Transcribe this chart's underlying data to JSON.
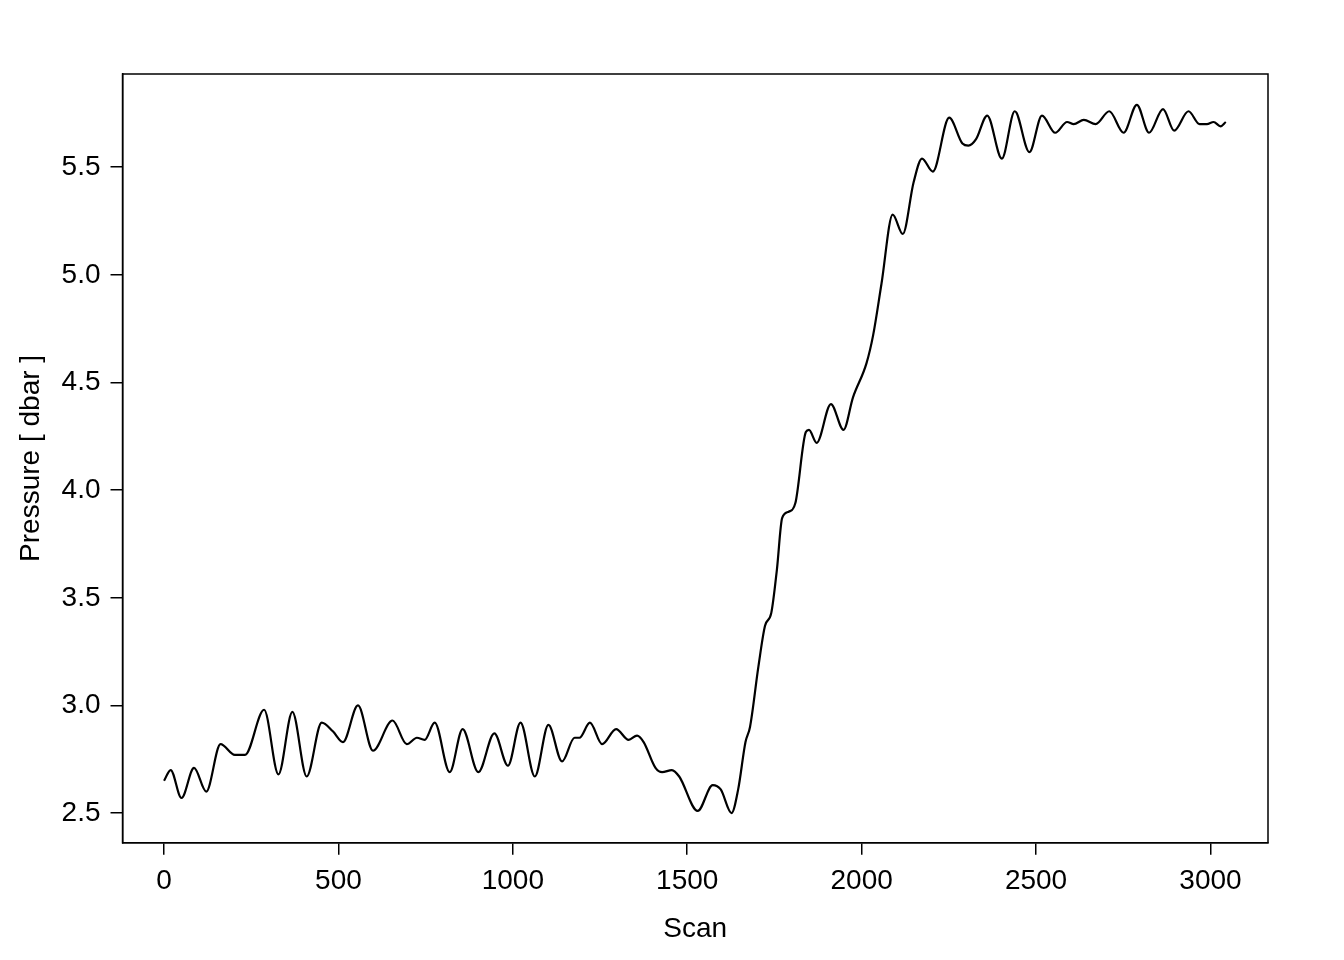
{
  "chart_data": {
    "type": "line",
    "xlabel": "Scan",
    "ylabel": "Pressure [ dbar ]",
    "xlim": [
      -119,
      3165
    ],
    "ylim": [
      2.362,
      5.933
    ],
    "xticks": [
      0,
      500,
      1000,
      1500,
      2000,
      2500,
      3000
    ],
    "yticks": [
      2.5,
      {
        "value": 3,
        "label": "3.0"
      },
      3.5,
      {
        "value": 4,
        "label": "4.0"
      },
      4.5,
      {
        "value": 5,
        "label": "5.0"
      },
      5.5
    ],
    "grid": false,
    "legend": false,
    "marker": "none",
    "line_style": "solid",
    "series": [
      {
        "color": "#000000",
        "x": [
          0,
          19,
          50,
          86,
          121,
          162,
          203,
          232,
          287,
          328,
          368,
          409,
          452,
          484,
          513,
          556,
          599,
          655,
          696,
          725,
          747,
          776,
          819,
          856,
          901,
          947,
          986,
          1022,
          1063,
          1102,
          1141,
          1177,
          1191,
          1221,
          1256,
          1296,
          1332,
          1356,
          1375,
          1409,
          1428,
          1456,
          1477,
          1530,
          1573,
          1596,
          1627,
          1646,
          1667,
          1680,
          1704,
          1723,
          1741,
          1757,
          1772,
          1791,
          1810,
          1840,
          1849,
          1871,
          1912,
          1948,
          1975,
          2014,
          2033,
          2057,
          2089,
          2118,
          2149,
          2173,
          2204,
          2251,
          2289,
          2306,
          2328,
          2360,
          2402,
          2439,
          2481,
          2517,
          2555,
          2589,
          2608,
          2637,
          2671,
          2710,
          2751,
          2789,
          2824,
          2864,
          2896,
          2937,
          2969,
          2990,
          3009,
          3029,
          3044
        ],
        "values": [
          2.65,
          2.7,
          2.57,
          2.71,
          2.6,
          2.82,
          2.77,
          2.77,
          2.98,
          2.68,
          2.97,
          2.67,
          2.92,
          2.88,
          2.83,
          3.0,
          2.79,
          2.93,
          2.82,
          2.85,
          2.84,
          2.92,
          2.69,
          2.89,
          2.69,
          2.87,
          2.72,
          2.92,
          2.67,
          2.91,
          2.74,
          2.85,
          2.85,
          2.92,
          2.82,
          2.89,
          2.84,
          2.86,
          2.83,
          2.71,
          2.69,
          2.7,
          2.67,
          2.51,
          2.63,
          2.61,
          2.5,
          2.61,
          2.83,
          2.9,
          3.18,
          3.37,
          3.43,
          3.63,
          3.87,
          3.9,
          3.94,
          4.27,
          4.28,
          4.22,
          4.4,
          4.28,
          4.43,
          4.59,
          4.72,
          4.96,
          5.28,
          5.19,
          5.43,
          5.54,
          5.48,
          5.73,
          5.61,
          5.6,
          5.63,
          5.74,
          5.54,
          5.76,
          5.57,
          5.74,
          5.66,
          5.71,
          5.7,
          5.72,
          5.7,
          5.76,
          5.66,
          5.79,
          5.66,
          5.77,
          5.67,
          5.76,
          5.7,
          5.7,
          5.71,
          5.69,
          5.71
        ]
      }
    ]
  }
}
